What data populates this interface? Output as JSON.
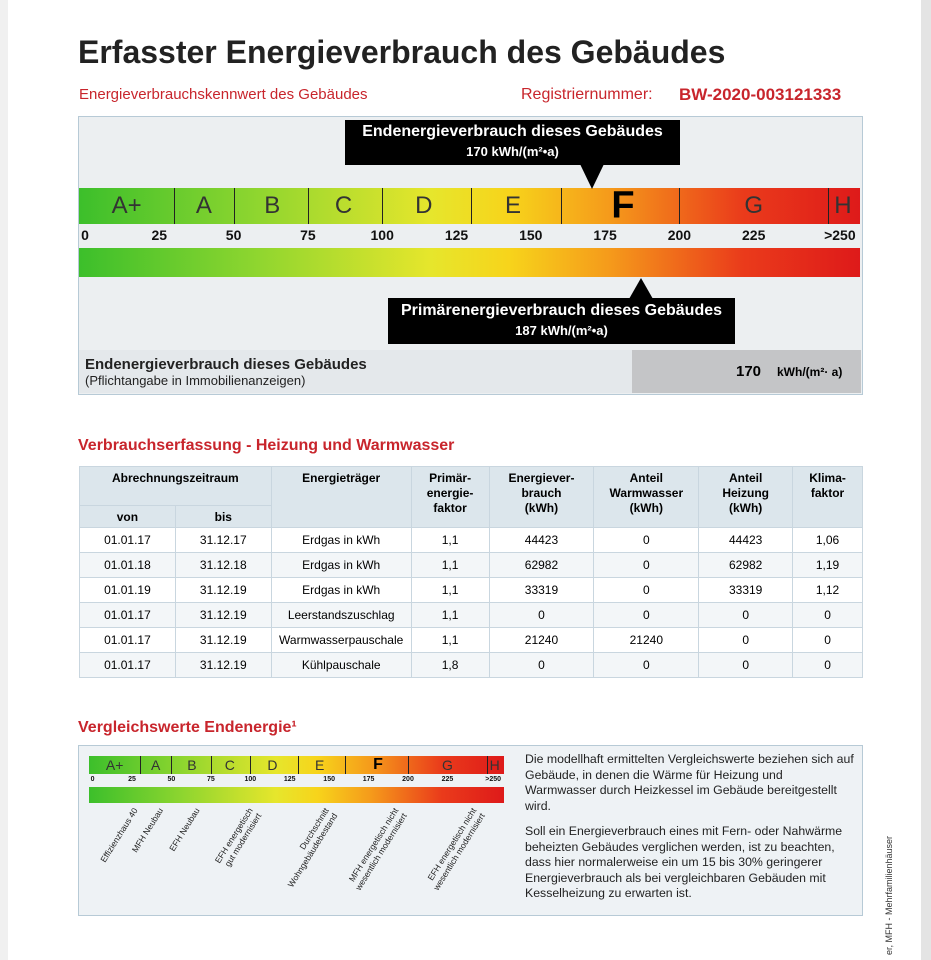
{
  "header": {
    "title": "Erfasster Energieverbrauch des Gebäudes",
    "subtitle": "Energieverbrauchskennwert des Gebäudes",
    "registration_label": "Registriernummer:",
    "registration_number": "BW-2020-003121333"
  },
  "scale": {
    "classes": [
      "A+",
      "A",
      "B",
      "C",
      "D",
      "E",
      "F",
      "G",
      "H"
    ],
    "ticks": [
      "0",
      "25",
      "50",
      "75",
      "100",
      "125",
      "150",
      "175",
      "200",
      "225",
      ">250"
    ]
  },
  "end_energy": {
    "title": "Endenergieverbrauch dieses Gebäudes",
    "value": "170 kWh/(m²•a)"
  },
  "primary_energy": {
    "title": "Primärenergieverbrauch dieses Gebäudes",
    "value": "187 kWh/(m²•a)"
  },
  "summary": {
    "label": "Endenergieverbrauch dieses Gebäudes",
    "note": "(Pflichtangabe in Immobilienanzeigen)",
    "value": "170",
    "unit": "kWh/(m²· a)"
  },
  "consumption": {
    "title": "Verbrauchserfassung - Heizung und Warmwasser"
  },
  "table": {
    "columns": [
      "Abrechnungszeitraum",
      "Energieträger",
      "Primär-\nenergie-\nfaktor",
      "Energiever-\nbrauch\n(kWh)",
      "Anteil\nWarmwasser\n(kWh)",
      "Anteil\nHeizung\n(kWh)",
      "Klima-\nfaktor"
    ],
    "subcolumns": [
      "von",
      "bis"
    ],
    "rows": [
      [
        "01.01.17",
        "31.12.17",
        "Erdgas in kWh",
        "1,1",
        "44423",
        "0",
        "44423",
        "1,06"
      ],
      [
        "01.01.18",
        "31.12.18",
        "Erdgas in kWh",
        "1,1",
        "62982",
        "0",
        "62982",
        "1,19"
      ],
      [
        "01.01.19",
        "31.12.19",
        "Erdgas in kWh",
        "1,1",
        "33319",
        "0",
        "33319",
        "1,12"
      ],
      [
        "01.01.17",
        "31.12.19",
        "Leerstandszuschlag",
        "1,1",
        "0",
        "0",
        "0",
        "0"
      ],
      [
        "01.01.17",
        "31.12.19",
        "Warmwasserpauschale",
        "1,1",
        "21240",
        "21240",
        "0",
        "0"
      ],
      [
        "01.01.17",
        "31.12.19",
        "Kühlpauschale",
        "1,8",
        "0",
        "0",
        "0",
        "0"
      ]
    ]
  },
  "comparison": {
    "title": "Vergleichswerte Endenergie¹",
    "labels": [
      "Effizienzhaus 40",
      "MFH Neubau",
      "EFH Neubau",
      "EFH energetisch\ngut modernisiert",
      "Durchschnitt\nWohngebäudebestand",
      "MFH energetisch nicht\nwesentlich modernisiert",
      "EFH energetisch nicht\nwesentlich modernisiert"
    ],
    "paragraphs": [
      "Die modellhaft ermittelten Vergleichswerte beziehen sich auf Gebäude, in denen die Wärme für Heizung und Warmwasser durch Heizkessel im Gebäude bereitgestellt wird.",
      "Soll ein Energieverbrauch eines mit Fern- oder Nahwärme beheizten Gebäudes verglichen werden, ist zu beachten, dass hier normalerweise ein um 15 bis 30% geringerer Energieverbrauch als bei vergleichbaren Gebäuden mit Kesselheizung zu erwarten ist."
    ]
  },
  "side_note": "er, MFH - Mehrfamilienhäuser"
}
